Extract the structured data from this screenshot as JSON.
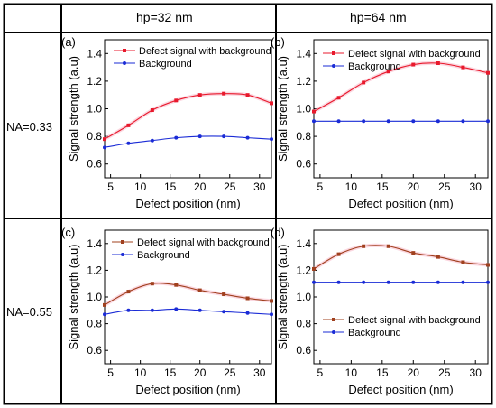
{
  "table": {
    "col_headers": [
      "hp=32 nm",
      "hp=64 nm"
    ],
    "row_headers": [
      "NA=0.33",
      "NA=0.55"
    ]
  },
  "colors": {
    "signal_series_a_b": "#e8192c",
    "signal_series_c_d": "#a0401e",
    "background_series": "#1a2bd6",
    "glow": "#f7b7c6"
  },
  "chart_data": [
    {
      "type": "line",
      "panel_label": "(a)",
      "xlabel": "Defect position (nm)",
      "ylabel": "Signal strength (a.u)",
      "xlim": [
        4,
        32
      ],
      "ylim": [
        0.5,
        1.5
      ],
      "x_ticks": [
        5,
        10,
        15,
        20,
        25,
        30
      ],
      "y_ticks": [
        0.6,
        0.8,
        1.0,
        1.2,
        1.4
      ],
      "legend_position": "top",
      "series": [
        {
          "name": "Defect signal with background",
          "color": "#e8192c",
          "marker": "square",
          "x": [
            4,
            8,
            12,
            16,
            20,
            24,
            28,
            32
          ],
          "y": [
            0.78,
            0.88,
            0.99,
            1.06,
            1.1,
            1.11,
            1.1,
            1.04
          ]
        },
        {
          "name": "Background",
          "color": "#1a2bd6",
          "marker": "circle",
          "x": [
            4,
            8,
            12,
            16,
            20,
            24,
            28,
            32
          ],
          "y": [
            0.72,
            0.75,
            0.77,
            0.79,
            0.8,
            0.8,
            0.79,
            0.78
          ]
        }
      ]
    },
    {
      "type": "line",
      "panel_label": "(b)",
      "xlabel": "Defect position (nm)",
      "ylabel": "Signal strength (a.u)",
      "xlim": [
        4,
        32
      ],
      "ylim": [
        0.5,
        1.5
      ],
      "x_ticks": [
        5,
        10,
        15,
        20,
        25,
        30
      ],
      "y_ticks": [
        0.6,
        0.8,
        1.0,
        1.2,
        1.4
      ],
      "legend_position": "top",
      "series": [
        {
          "name": "Defect signal with background",
          "color": "#e8192c",
          "marker": "square",
          "x": [
            4,
            8,
            12,
            16,
            20,
            24,
            28,
            32
          ],
          "y": [
            0.98,
            1.08,
            1.19,
            1.27,
            1.32,
            1.33,
            1.3,
            1.26
          ]
        },
        {
          "name": "Background",
          "color": "#1a2bd6",
          "marker": "circle",
          "x": [
            4,
            8,
            12,
            16,
            20,
            24,
            28,
            32
          ],
          "y": [
            0.91,
            0.91,
            0.91,
            0.91,
            0.91,
            0.91,
            0.91,
            0.91
          ]
        }
      ]
    },
    {
      "type": "line",
      "panel_label": "(c)",
      "xlabel": "Defect position (nm)",
      "ylabel": "Signal strength (a.u)",
      "xlim": [
        4,
        32
      ],
      "ylim": [
        0.5,
        1.5
      ],
      "x_ticks": [
        5,
        10,
        15,
        20,
        25,
        30
      ],
      "y_ticks": [
        0.6,
        0.8,
        1.0,
        1.2,
        1.4
      ],
      "legend_position": "top",
      "series": [
        {
          "name": "Defect signal with background",
          "color": "#a0401e",
          "marker": "square",
          "x": [
            4,
            8,
            12,
            16,
            20,
            24,
            28,
            32
          ],
          "y": [
            0.94,
            1.04,
            1.1,
            1.09,
            1.05,
            1.02,
            0.99,
            0.97
          ]
        },
        {
          "name": "Background",
          "color": "#1a2bd6",
          "marker": "circle",
          "x": [
            4,
            8,
            12,
            16,
            20,
            24,
            28,
            32
          ],
          "y": [
            0.87,
            0.9,
            0.9,
            0.91,
            0.9,
            0.89,
            0.88,
            0.87
          ]
        }
      ]
    },
    {
      "type": "line",
      "panel_label": "(d)",
      "xlabel": "Defect position (nm)",
      "ylabel": "Signal strength (a.u)",
      "xlim": [
        4,
        32
      ],
      "ylim": [
        0.5,
        1.5
      ],
      "x_ticks": [
        5,
        10,
        15,
        20,
        25,
        30
      ],
      "y_ticks": [
        0.6,
        0.8,
        1.0,
        1.2,
        1.4
      ],
      "legend_position": "bottom",
      "series": [
        {
          "name": "Defect signal with background",
          "color": "#a0401e",
          "marker": "square",
          "x": [
            4,
            8,
            12,
            16,
            20,
            24,
            28,
            32
          ],
          "y": [
            1.21,
            1.32,
            1.38,
            1.38,
            1.33,
            1.3,
            1.26,
            1.24
          ]
        },
        {
          "name": "Background",
          "color": "#1a2bd6",
          "marker": "circle",
          "x": [
            4,
            8,
            12,
            16,
            20,
            24,
            28,
            32
          ],
          "y": [
            1.11,
            1.11,
            1.11,
            1.11,
            1.11,
            1.11,
            1.11,
            1.11
          ]
        }
      ]
    }
  ]
}
